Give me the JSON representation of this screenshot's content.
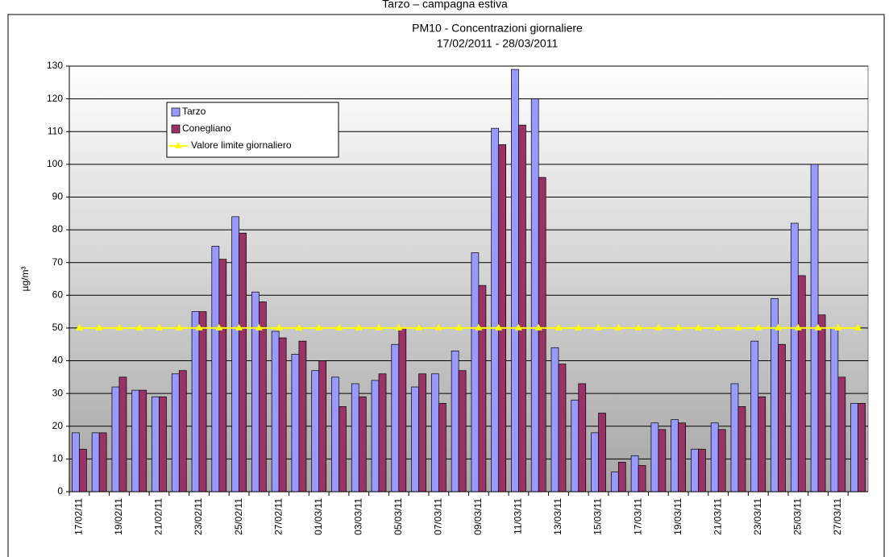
{
  "chart_data": {
    "type": "bar",
    "suptitle": "Tarzo – campagna estiva",
    "title": "PM10 - Concentrazioni giornaliere",
    "subtitle": "17/02/2011 - 28/03/2011",
    "ylabel": "µg/m³",
    "categories": [
      "17/02/11",
      null,
      "19/02/11",
      null,
      "21/02/11",
      null,
      "23/02/11",
      null,
      "25/02/11",
      null,
      "27/02/11",
      null,
      "01/03/11",
      null,
      "03/03/11",
      null,
      "05/03/11",
      null,
      "07/03/11",
      null,
      "09/03/11",
      null,
      "11/03/11",
      null,
      "13/03/11",
      null,
      "15/03/11",
      null,
      "17/03/11",
      null,
      "19/03/11",
      null,
      "21/03/11",
      null,
      "23/03/11",
      null,
      "25/03/11",
      null,
      "27/03/11",
      null
    ],
    "series": [
      {
        "name": "Tarzo",
        "color": "#9999ff",
        "type": "bar",
        "values": [
          18,
          18,
          32,
          31,
          29,
          36,
          55,
          75,
          84,
          61,
          49,
          42,
          37,
          35,
          33,
          34,
          45,
          32,
          36,
          43,
          73,
          111,
          129,
          120,
          44,
          28,
          18,
          6,
          11,
          21,
          22,
          13,
          21,
          33,
          46,
          59,
          82,
          100,
          50,
          27
        ]
      },
      {
        "name": "Conegliano",
        "color": "#993366",
        "type": "bar",
        "values": [
          13,
          18,
          35,
          31,
          29,
          37,
          55,
          71,
          79,
          58,
          47,
          46,
          40,
          26,
          29,
          36,
          50,
          36,
          27,
          37,
          63,
          106,
          112,
          96,
          39,
          33,
          24,
          9,
          8,
          19,
          21,
          13,
          19,
          26,
          29,
          45,
          66,
          54,
          35,
          27
        ]
      },
      {
        "name": "Valore limite giornaliero",
        "color": "#ffff00",
        "type": "line",
        "values": [
          50,
          50,
          50,
          50,
          50,
          50,
          50,
          50,
          50,
          50,
          50,
          50,
          50,
          50,
          50,
          50,
          50,
          50,
          50,
          50,
          50,
          50,
          50,
          50,
          50,
          50,
          50,
          50,
          50,
          50,
          50,
          50,
          50,
          50,
          50,
          50,
          50,
          50,
          50,
          50
        ]
      }
    ],
    "ylim": [
      0,
      130
    ],
    "yticks": [
      0,
      10,
      20,
      30,
      40,
      50,
      60,
      70,
      80,
      90,
      100,
      110,
      120,
      130
    ],
    "grid": true,
    "legend": "upper-left"
  }
}
